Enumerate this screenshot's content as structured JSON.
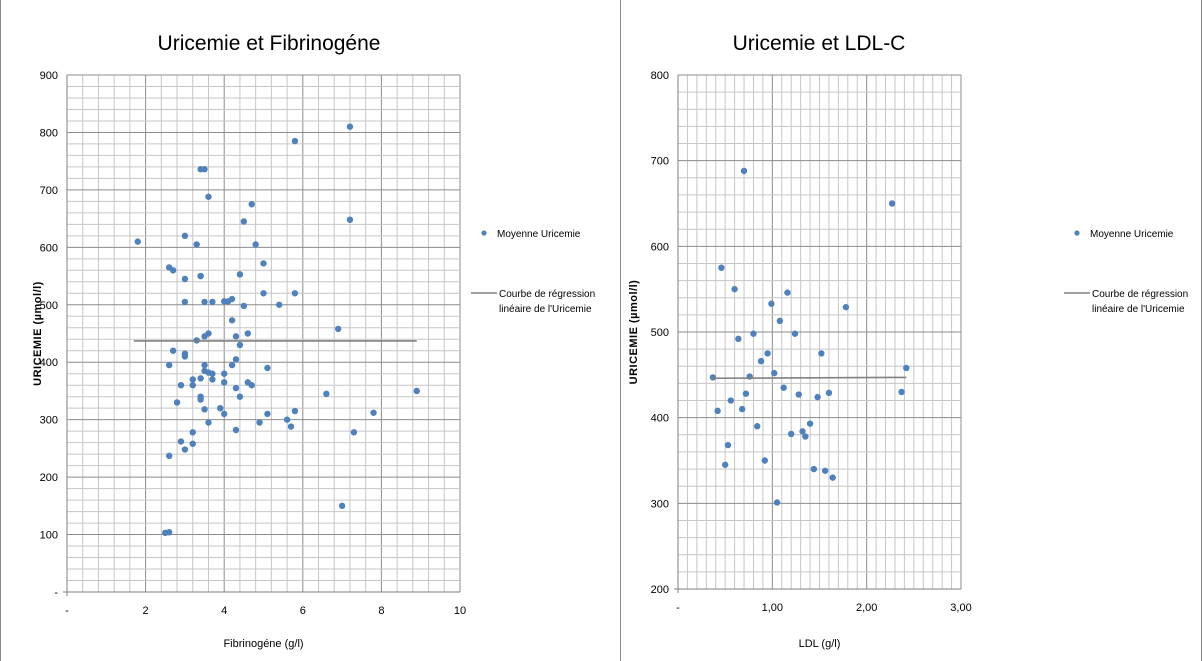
{
  "chart_data": [
    {
      "type": "scatter",
      "title": "Uricemie et Fibrinogéne",
      "xlabel": "Fibrinogéne (g/l)",
      "ylabel": "URICEMIE  (µmol/l)",
      "xlim": [
        0,
        10
      ],
      "ylim": [
        0,
        900
      ],
      "x_ticks": [
        0,
        2,
        4,
        6,
        8,
        10
      ],
      "x_tick_labels": [
        "-",
        "2",
        "4",
        "6",
        "8",
        "10"
      ],
      "y_ticks": [
        0,
        100,
        200,
        300,
        400,
        500,
        600,
        700,
        800,
        900
      ],
      "y_tick_labels": [
        "-",
        "100",
        "200",
        "300",
        "400",
        "500",
        "600",
        "700",
        "800",
        "900"
      ],
      "grid": true,
      "legend_position": "right",
      "marker_color": "#4f81bd",
      "line_color": "#808080",
      "series": [
        {
          "name": "Moyenne Uricemie",
          "kind": "points",
          "x": [
            1.8,
            2.6,
            2.7,
            2.7,
            2.6,
            2.6,
            2.8,
            2.9,
            2.6,
            2.5,
            3.0,
            3.0,
            3.3,
            3.0,
            3.0,
            3.0,
            3.2,
            3.2,
            3.2,
            3.2,
            3.0,
            2.9,
            3.4,
            3.4,
            3.5,
            3.5,
            3.6,
            3.7,
            3.3,
            3.5,
            3.5,
            3.4,
            3.4,
            3.6,
            3.6,
            3.7,
            3.5,
            3.4,
            3.4,
            3.6,
            3.9,
            4.0,
            3.5,
            3.7,
            4.5,
            4.7,
            4.8,
            5.0,
            5.0,
            5.4,
            5.8,
            5.8,
            4.4,
            4.0,
            4.1,
            4.2,
            4.3,
            4.2,
            4.0,
            4.0,
            4.2,
            4.3,
            4.5,
            4.4,
            4.6,
            4.6,
            4.7,
            4.3,
            4.4,
            4.3,
            4.9,
            5.1,
            5.1,
            5.6,
            5.7,
            5.8,
            6.6,
            6.9,
            7.0,
            7.2,
            7.2,
            7.3,
            7.8,
            8.9
          ],
          "y": [
            610,
            565,
            560,
            420,
            395,
            237,
            330,
            262,
            104,
            103,
            620,
            545,
            605,
            505,
            415,
            410,
            370,
            360,
            278,
            258,
            248,
            360,
            550,
            550,
            505,
            445,
            450,
            505,
            438,
            395,
            385,
            340,
            335,
            382,
            295,
            380,
            736,
            736,
            372,
            688,
            320,
            310,
            318,
            370,
            645,
            675,
            605,
            572,
            520,
            500,
            785,
            520,
            553,
            506,
            506,
            510,
            445,
            473,
            380,
            365,
            395,
            405,
            498,
            430,
            450,
            365,
            360,
            355,
            340,
            282,
            295,
            390,
            310,
            300,
            288,
            315,
            345,
            458,
            150,
            810,
            648,
            278,
            312,
            350
          ]
        },
        {
          "name": "Courbe de régression linéaire de l'Uricemie",
          "kind": "line",
          "x": [
            1.7,
            8.9
          ],
          "y": [
            437,
            437
          ]
        }
      ]
    },
    {
      "type": "scatter",
      "title": "Uricemie et LDL-C",
      "xlabel": "LDL (g/l)",
      "ylabel": "URICEMIE  (µmol/l)",
      "xlim": [
        0,
        3
      ],
      "ylim": [
        200,
        800
      ],
      "x_ticks": [
        0,
        1,
        2,
        3
      ],
      "x_tick_labels": [
        "-",
        "1,00",
        "2,00",
        "3,00"
      ],
      "y_ticks": [
        200,
        300,
        400,
        500,
        600,
        700,
        800
      ],
      "y_tick_labels": [
        "200",
        "300",
        "400",
        "500",
        "600",
        "700",
        "800"
      ],
      "grid": true,
      "legend_position": "right",
      "marker_color": "#4f81bd",
      "line_color": "#808080",
      "series": [
        {
          "name": "Moyenne Uricemie",
          "kind": "points",
          "x": [
            0.37,
            0.42,
            0.46,
            0.5,
            0.53,
            0.56,
            0.6,
            0.64,
            0.68,
            0.7,
            0.72,
            0.76,
            0.8,
            0.84,
            0.88,
            0.92,
            0.95,
            0.99,
            1.02,
            1.05,
            1.08,
            1.12,
            1.16,
            1.2,
            1.24,
            1.28,
            1.32,
            1.35,
            1.4,
            1.44,
            1.48,
            1.52,
            1.56,
            1.6,
            1.64,
            1.78,
            2.27,
            2.37,
            2.42
          ],
          "y": [
            447,
            408,
            575,
            345,
            368,
            420,
            550,
            492,
            410,
            688,
            428,
            448,
            498,
            390,
            466,
            350,
            475,
            533,
            452,
            301,
            513,
            435,
            546,
            381,
            498,
            427,
            384,
            378,
            393,
            340,
            424,
            475,
            338,
            429,
            330,
            529,
            650,
            430,
            458
          ]
        },
        {
          "name": "Courbe de régression linéaire de l'Uricemie",
          "kind": "line",
          "x": [
            0.36,
            2.42
          ],
          "y": [
            446,
            447
          ]
        }
      ]
    }
  ]
}
